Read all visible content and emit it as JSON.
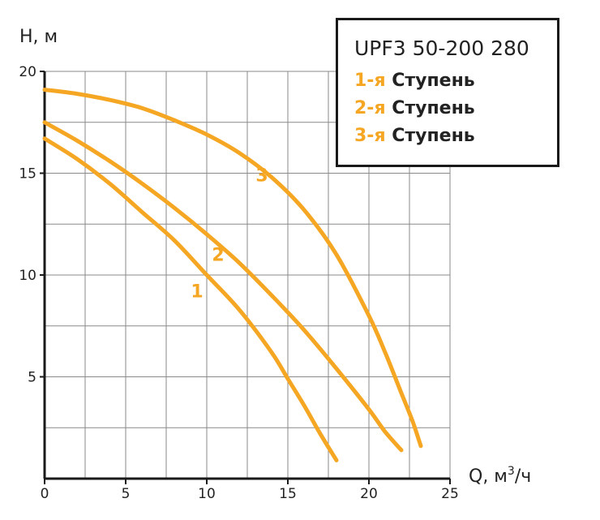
{
  "colors": {
    "curve": "#f5a623",
    "grid": "#8a8a8a",
    "axis": "#1a1a1a",
    "text": "#222222"
  },
  "chart_data": {
    "type": "line",
    "title": "UPF3 50-200 280",
    "xlabel": "Q, м",
    "xlabel_sup": "3",
    "xlabel_suffix": "/ч",
    "ylabel": "H, м",
    "xlim": [
      0,
      25
    ],
    "ylim": [
      0,
      20
    ],
    "x_ticks": [
      0,
      5,
      10,
      15,
      20,
      25
    ],
    "y_ticks": [
      5,
      10,
      15,
      20
    ],
    "grid": true,
    "legend_position": "top-right",
    "series": [
      {
        "name": "1-я Ступень",
        "label": "1",
        "x": [
          0,
          2,
          4,
          6,
          8,
          10,
          12,
          14,
          15,
          16,
          17,
          18
        ],
        "y": [
          16.7,
          15.7,
          14.5,
          13.1,
          11.7,
          10.0,
          8.3,
          6.2,
          4.9,
          3.6,
          2.2,
          0.9
        ]
      },
      {
        "name": "2-я Ступень",
        "label": "2",
        "x": [
          0,
          2,
          4,
          6,
          8,
          10,
          12,
          14,
          16,
          18,
          20,
          21,
          22
        ],
        "y": [
          17.5,
          16.6,
          15.6,
          14.5,
          13.3,
          12.0,
          10.6,
          9.0,
          7.3,
          5.4,
          3.4,
          2.3,
          1.4
        ]
      },
      {
        "name": "3-я Ступень",
        "label": "3",
        "x": [
          0,
          2,
          4,
          6,
          8,
          10,
          12,
          14,
          16,
          18,
          20,
          21,
          22,
          22.7,
          23.2
        ],
        "y": [
          19.1,
          18.9,
          18.6,
          18.2,
          17.6,
          16.9,
          16.0,
          14.8,
          13.2,
          11.0,
          8.0,
          6.2,
          4.2,
          2.8,
          1.6
        ]
      }
    ],
    "curve_labels": [
      {
        "text": "1",
        "x": 9.4,
        "y": 8.9
      },
      {
        "text": "2",
        "x": 10.7,
        "y": 10.7
      },
      {
        "text": "3",
        "x": 13.4,
        "y": 14.6
      }
    ]
  },
  "legend": {
    "title": "UPF3 50-200 280",
    "items": [
      {
        "num": "1-я",
        "text": " Ступень"
      },
      {
        "num": "2-я",
        "text": " Ступень"
      },
      {
        "num": "3-я",
        "text": " Ступень"
      }
    ]
  }
}
